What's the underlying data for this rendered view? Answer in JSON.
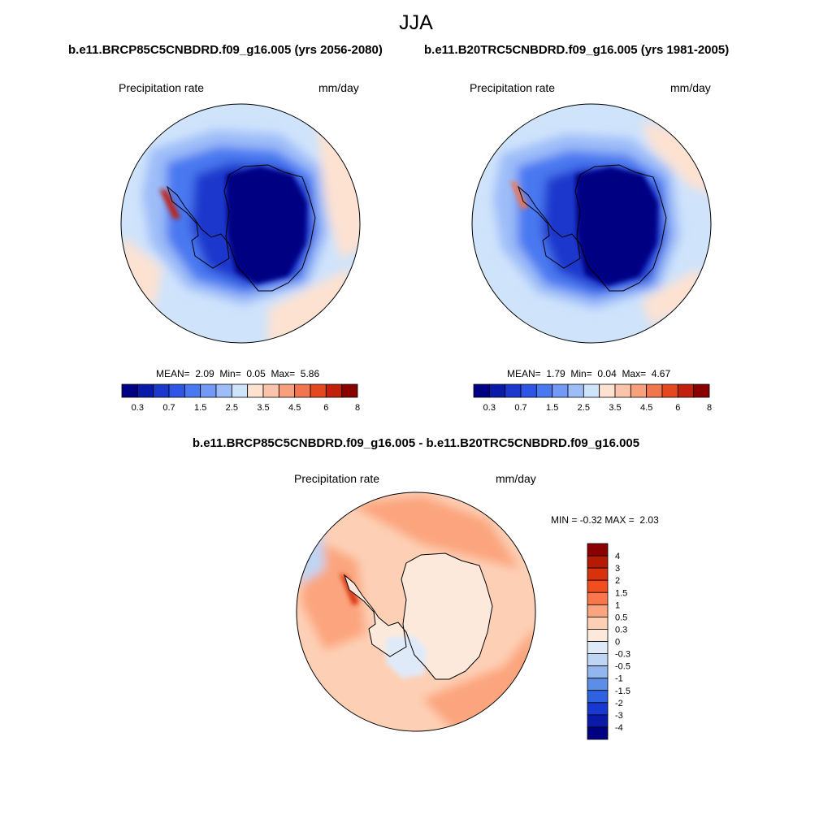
{
  "figure": {
    "title": "JJA",
    "panel_left_title": "b.e11.BRCP85C5CNBDRD.f09_g16.005 (yrs 2056-2080)",
    "panel_right_title": "b.e11.B20TRC5CNBDRD.f09_g16.005 (yrs 1981-2005)",
    "diff_title": "b.e11.BRCP85C5CNBDRD.f09_g16.005 - b.e11.B20TRC5CNBDRD.f09_g16.005",
    "variable": "Precipitation rate",
    "units": "mm/day"
  },
  "chart_data": [
    {
      "type": "heatmap",
      "projection": "south-polar-stereographic",
      "title": "b.e11.BRCP85C5CNBDRD.f09_g16.005 (yrs 2056-2080)",
      "variable": "Precipitation rate",
      "units": "mm/day",
      "stats": {
        "mean_label": "MEAN=",
        "mean": "2.09",
        "min_label": "Min=",
        "min": "0.05",
        "max_label": "Max=",
        "max": "5.86"
      },
      "colorbar": {
        "orientation": "horizontal",
        "levels": [
          0.3,
          0.5,
          0.7,
          1,
          1.5,
          2,
          2.5,
          3,
          3.5,
          4,
          4.5,
          5,
          6,
          7,
          8
        ],
        "tick_labels": [
          "0.3",
          "0.7",
          "1.5",
          "2.5",
          "3.5",
          "4.5",
          "6",
          "8"
        ]
      }
    },
    {
      "type": "heatmap",
      "projection": "south-polar-stereographic",
      "title": "b.e11.B20TRC5CNBDRD.f09_g16.005 (yrs 1981-2005)",
      "variable": "Precipitation rate",
      "units": "mm/day",
      "stats": {
        "mean_label": "MEAN=",
        "mean": "1.79",
        "min_label": "Min=",
        "min": "0.04",
        "max_label": "Max=",
        "max": "4.67"
      },
      "colorbar": {
        "orientation": "horizontal",
        "levels": [
          0.3,
          0.5,
          0.7,
          1,
          1.5,
          2,
          2.5,
          3,
          3.5,
          4,
          4.5,
          5,
          6,
          7,
          8
        ],
        "tick_labels": [
          "0.3",
          "0.7",
          "1.5",
          "2.5",
          "3.5",
          "4.5",
          "6",
          "8"
        ]
      }
    },
    {
      "type": "heatmap",
      "projection": "south-polar-stereographic",
      "title": "b.e11.BRCP85C5CNBDRD.f09_g16.005 - b.e11.B20TRC5CNBDRD.f09_g16.005",
      "variable": "Precipitation rate",
      "units": "mm/day",
      "stats": {
        "min_label": "MIN =",
        "min": "-0.32",
        "max_label": "MAX =",
        "max": "2.03"
      },
      "colorbar": {
        "orientation": "vertical",
        "tick_labels": [
          "4",
          "3",
          "2",
          "1.5",
          "1",
          "0.5",
          "0.3",
          "0",
          "-0.3",
          "-0.5",
          "-1",
          "-1.5",
          "-2",
          "-3",
          "-4"
        ]
      }
    }
  ],
  "palettes": {
    "precip": [
      "#000083",
      "#0a1aa8",
      "#1c38cc",
      "#2f55e6",
      "#4a78f0",
      "#7299f5",
      "#9dbcf8",
      "#cfe3fb",
      "#fde2d2",
      "#fac4ab",
      "#f6a07e",
      "#f07650",
      "#e54820",
      "#c0200c",
      "#8a0000"
    ],
    "diff": [
      "#8b0000",
      "#b51a05",
      "#d8310d",
      "#f24d1d",
      "#f9774b",
      "#fba47d",
      "#fdd0b6",
      "#fde9dc",
      "#dfeaf8",
      "#bfd5f4",
      "#93b6ef",
      "#5c8ee8",
      "#2f62e0",
      "#1838cf",
      "#0a1aa8",
      "#000083"
    ]
  }
}
